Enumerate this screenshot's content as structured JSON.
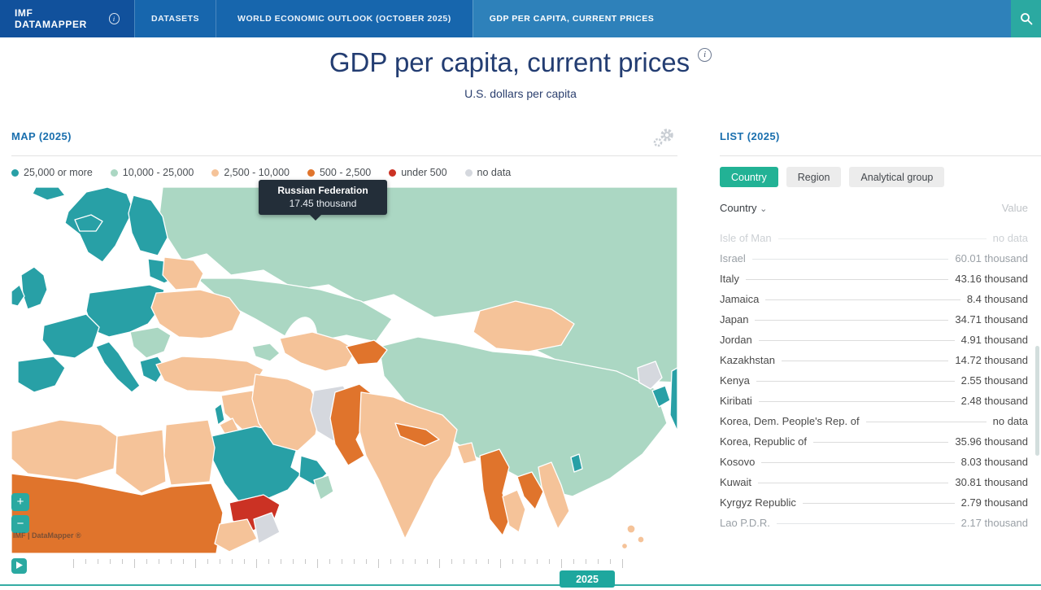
{
  "nav": {
    "brand": "IMF DATAMAPPER",
    "items": [
      {
        "label": "DATASETS",
        "active": false
      },
      {
        "label": "WORLD ECONOMIC OUTLOOK (OCTOBER 2025)",
        "active": false
      },
      {
        "label": "GDP PER CAPITA, CURRENT PRICES",
        "active": true
      }
    ],
    "search_icon": "magnifier"
  },
  "header": {
    "title": "GDP per capita, current prices",
    "subtitle": "U.S. dollars per capita",
    "info_icon": "i"
  },
  "palette": {
    "nav_dark_blue": "#11519c",
    "nav_blue": "#1766ad",
    "nav_active_blue": "#2e81ba",
    "teal_accent": "#2ba9a1",
    "list_tab_active": "#22b295",
    "timeline_line": "#35aca4",
    "tooltip_bg": "#232e39"
  },
  "map_panel": {
    "title": "MAP (2025)",
    "gear_icon": "settings-gears",
    "legend": [
      {
        "label": "25,000 or more",
        "color": "#28a0a6"
      },
      {
        "label": "10,000 - 25,000",
        "color": "#abd7c3"
      },
      {
        "label": "2,500 - 10,000",
        "color": "#f5c399"
      },
      {
        "label": "500 - 2,500",
        "color": "#e0742c"
      },
      {
        "label": "under 500",
        "color": "#cb3224"
      },
      {
        "label": "no data",
        "color": "#d5d8de"
      }
    ],
    "tooltip": {
      "country": "Russian Federation",
      "value": "17.45 thousand"
    },
    "zoom_in": "+",
    "zoom_out": "−",
    "watermark": "IMF | DataMapper ®"
  },
  "timeline": {
    "year": "2025",
    "range_start": 1980,
    "range_end": 2025,
    "play_icon": "play"
  },
  "list_panel": {
    "title": "LIST (2025)",
    "tabs": [
      {
        "label": "Country",
        "active": true
      },
      {
        "label": "Region",
        "active": false
      },
      {
        "label": "Analytical group",
        "active": false
      }
    ],
    "columns": {
      "country": "Country",
      "value": "Value",
      "sort_chevron": "⌄"
    },
    "rows": [
      {
        "country": "Isle of Man",
        "value": "no data",
        "state": "muted"
      },
      {
        "country": "Israel",
        "value": "60.01 thousand",
        "state": "dim"
      },
      {
        "country": "Italy",
        "value": "43.16 thousand",
        "state": ""
      },
      {
        "country": "Jamaica",
        "value": "8.4 thousand",
        "state": ""
      },
      {
        "country": "Japan",
        "value": "34.71 thousand",
        "state": ""
      },
      {
        "country": "Jordan",
        "value": "4.91 thousand",
        "state": ""
      },
      {
        "country": "Kazakhstan",
        "value": "14.72 thousand",
        "state": ""
      },
      {
        "country": "Kenya",
        "value": "2.55 thousand",
        "state": ""
      },
      {
        "country": "Kiribati",
        "value": "2.48 thousand",
        "state": ""
      },
      {
        "country": "Korea, Dem. People's Rep. of",
        "value": "no data",
        "state": ""
      },
      {
        "country": "Korea, Republic of",
        "value": "35.96 thousand",
        "state": ""
      },
      {
        "country": "Kosovo",
        "value": "8.03 thousand",
        "state": ""
      },
      {
        "country": "Kuwait",
        "value": "30.81 thousand",
        "state": ""
      },
      {
        "country": "Kyrgyz Republic",
        "value": "2.79 thousand",
        "state": ""
      },
      {
        "country": "Lao P.D.R.",
        "value": "2.17 thousand",
        "state": "dim"
      }
    ]
  }
}
